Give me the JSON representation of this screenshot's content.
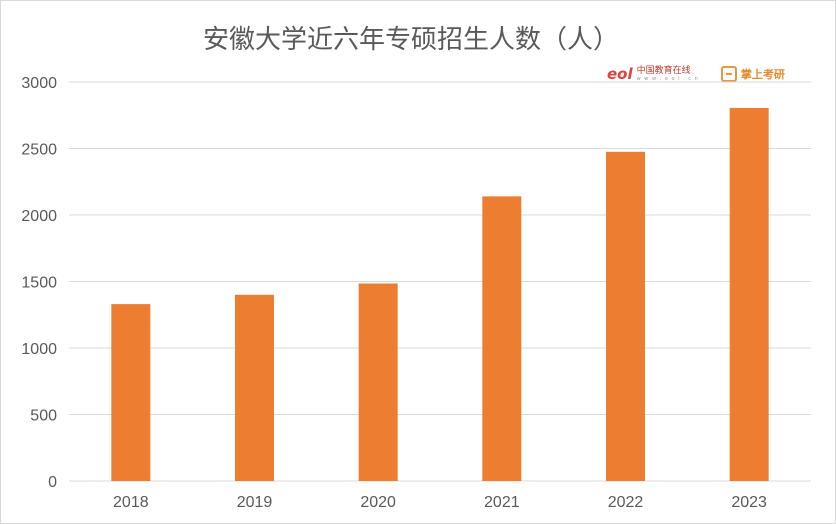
{
  "chart_data": {
    "type": "bar",
    "title": "安徽大学近六年专硕招生人数（人）",
    "categories": [
      "2018",
      "2019",
      "2020",
      "2021",
      "2022",
      "2023"
    ],
    "values": [
      1330,
      1400,
      1485,
      2140,
      2475,
      2805
    ],
    "ylim": [
      0,
      3000
    ],
    "yticks": [
      0,
      500,
      1000,
      1500,
      2000,
      2500,
      3000
    ],
    "grid": true,
    "bar_color": "#ed7d31"
  },
  "watermarks": {
    "eol_mark": "eol",
    "eol_name": "中国教育在线",
    "eol_url": "w w w . e o l . c n",
    "kaoyan_name": "掌上考研"
  }
}
